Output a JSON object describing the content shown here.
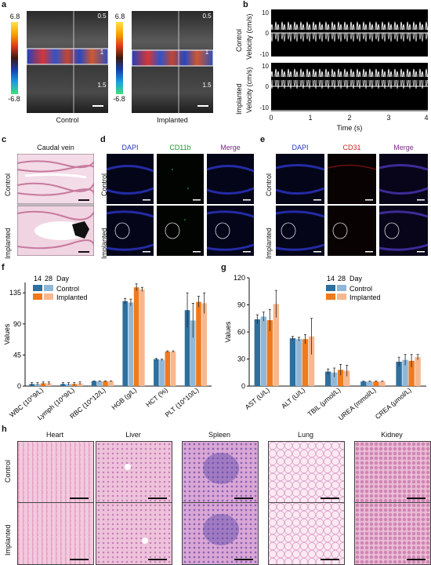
{
  "panels": {
    "a": {
      "letter": "a",
      "scale_top": "6.8",
      "scale_bottom": "-6.8",
      "depth_ticks": [
        "0.5",
        "1",
        "1.5"
      ],
      "captions": [
        "Control",
        "Implanted"
      ]
    },
    "b": {
      "letter": "b",
      "rows": [
        {
          "group": "Control",
          "ylabel": "Velocity (cm/s)"
        },
        {
          "group": "Implanted",
          "ylabel": "Velocity (cm/s)"
        }
      ],
      "y_ticks": [
        "10",
        "0",
        "-10"
      ],
      "x_ticks": [
        "0",
        "1",
        "2",
        "3",
        "4"
      ],
      "xlabel": "Time (s)"
    },
    "c": {
      "letter": "c",
      "title": "Caudal vein",
      "rows": [
        "Control",
        "Implanted"
      ]
    },
    "d": {
      "letter": "d",
      "columns": [
        "DAPI",
        "CD11b",
        "Merge"
      ],
      "rows": [
        "Control",
        "Implanted"
      ]
    },
    "e": {
      "letter": "e",
      "columns": [
        "DAPI",
        "CD31",
        "Merge"
      ],
      "rows": [
        "Control",
        "Implanted"
      ]
    },
    "h": {
      "letter": "h",
      "columns": [
        "Heart",
        "Liver",
        "Spleen",
        "Lung",
        "Kidney"
      ],
      "rows": [
        "Control",
        "Implanted"
      ]
    },
    "colors": {
      "control14": "#2e6f9e",
      "control28": "#8fb8d8",
      "implanted14": "#f07a1c",
      "implanted28": "#f7b78f"
    }
  },
  "chart_data": [
    {
      "panel": "f",
      "letter": "f",
      "type": "bar",
      "ylabel": "Values",
      "ylim": [
        0,
        150
      ],
      "yticks": [
        0,
        45,
        90,
        135
      ],
      "categories": [
        "WBC (10^9/L)",
        "Lymph (10^9/L)",
        "RBC (10^12/L)",
        "HGB (g/L)",
        "HCT (%)",
        "PLT (10^10/L)"
      ],
      "legend": {
        "day_header": "Day",
        "days": [
          "14",
          "28"
        ],
        "groups": [
          "Control",
          "Implanted"
        ],
        "placement": "top-left"
      },
      "series": [
        {
          "values": [
            3,
            3,
            7,
            123,
            39,
            110
          ],
          "errors": [
            2,
            2,
            0.5,
            4,
            1,
            25
          ]
        },
        {
          "values": [
            3,
            3,
            7,
            121,
            38,
            95
          ],
          "errors": [
            2,
            2,
            0.5,
            5,
            1,
            25
          ]
        },
        {
          "values": [
            4,
            3,
            7,
            143,
            50,
            122
          ],
          "errors": [
            2,
            2,
            0.5,
            5,
            1,
            8
          ]
        },
        {
          "values": [
            4,
            4,
            7,
            140,
            50,
            120
          ],
          "errors": [
            2,
            2,
            0.5,
            3,
            1,
            15
          ]
        }
      ]
    },
    {
      "panel": "g",
      "letter": "g",
      "type": "bar",
      "ylabel": "Values",
      "ylim": [
        0,
        120
      ],
      "yticks": [
        0,
        30,
        60,
        90,
        120
      ],
      "categories": [
        "AST (U/L)",
        "ALT (U/L)",
        "TBIL (μmol/L)",
        "UREA (mmol/L)",
        "CREA (μmol/L)"
      ],
      "legend": {
        "day_header": "Day",
        "days": [
          "14",
          "28"
        ],
        "groups": [
          "Control",
          "Implanted"
        ],
        "placement": "top-right"
      },
      "series": [
        {
          "values": [
            74,
            53,
            16,
            5,
            27
          ],
          "errors": [
            5,
            2,
            3,
            0.5,
            5
          ]
        },
        {
          "values": [
            77,
            52,
            15,
            5,
            29
          ],
          "errors": [
            5,
            2,
            5,
            0.5,
            6
          ]
        },
        {
          "values": [
            73,
            52,
            18,
            5,
            28
          ],
          "errors": [
            12,
            5,
            6,
            0.5,
            7
          ]
        },
        {
          "values": [
            91,
            55,
            17,
            5,
            32
          ],
          "errors": [
            15,
            20,
            6,
            0.5,
            3
          ]
        }
      ]
    }
  ]
}
